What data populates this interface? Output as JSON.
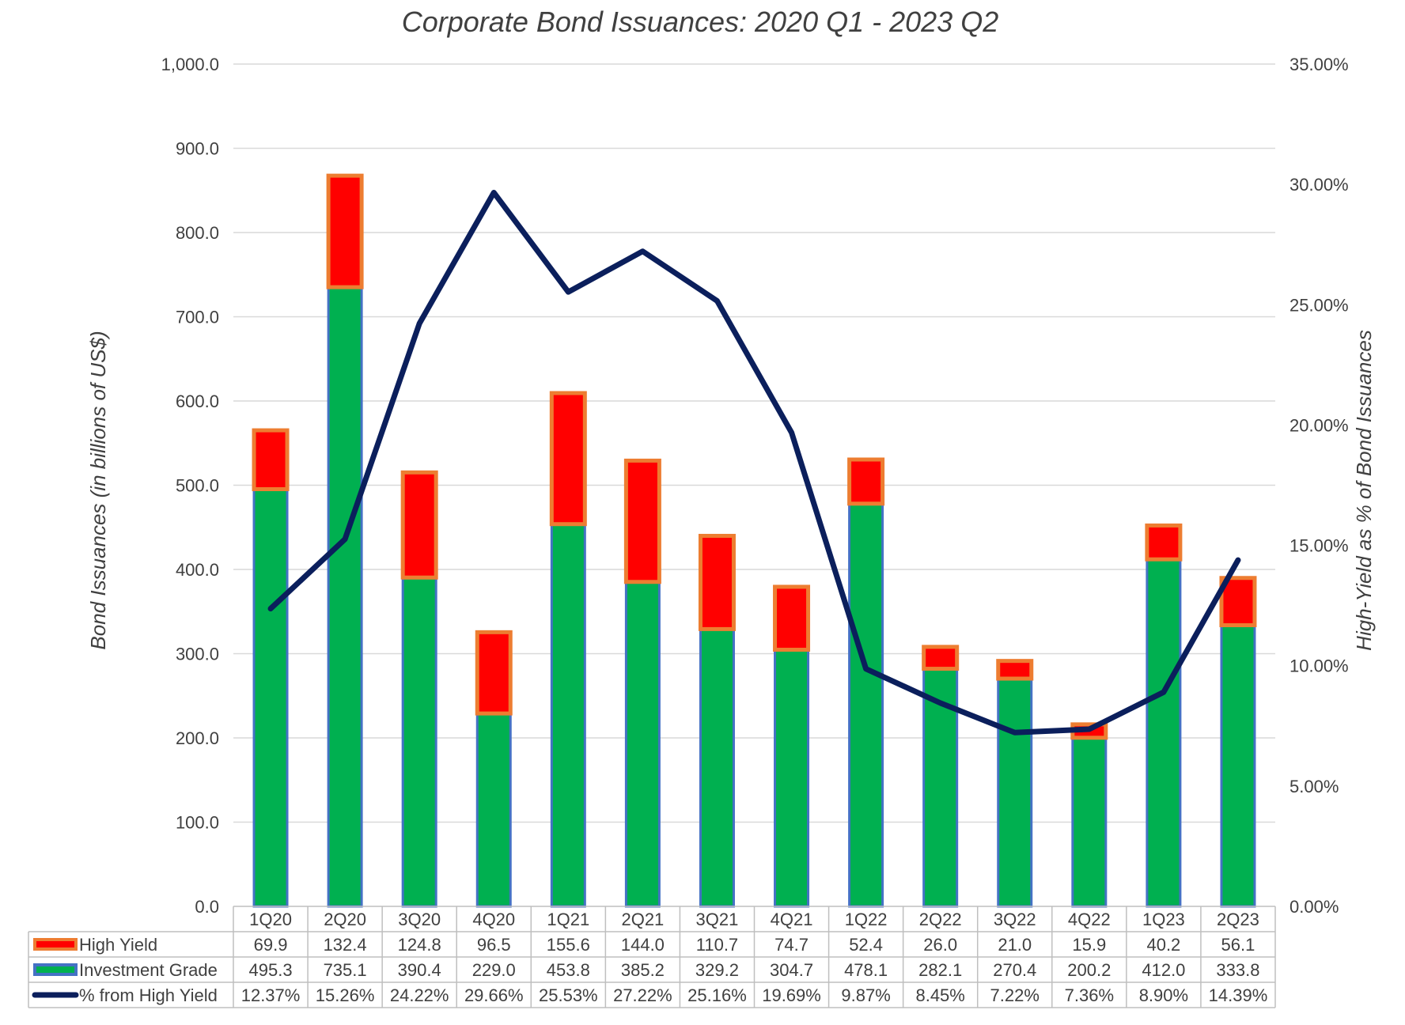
{
  "chart_data": {
    "type": "bar",
    "stacked": true,
    "title": "Corporate Bond Issuances: 2020 Q1 - 2023 Q2",
    "ylabel": "Bond Issuances (in billions of US$)",
    "y2label": "High-Yield as % of Bond Issuances",
    "ylim": [
      0,
      1000
    ],
    "y2lim": [
      0,
      35
    ],
    "yticks": [
      "0.0",
      "100.0",
      "200.0",
      "300.0",
      "400.0",
      "500.0",
      "600.0",
      "700.0",
      "800.0",
      "900.0",
      "1,000.0"
    ],
    "y2ticks": [
      "0.00%",
      "5.00%",
      "10.00%",
      "15.00%",
      "20.00%",
      "25.00%",
      "30.00%",
      "35.00%"
    ],
    "grid": true,
    "legend_placement": "data-table-bottom",
    "categories": [
      "1Q20",
      "2Q20",
      "3Q20",
      "4Q20",
      "1Q21",
      "2Q21",
      "3Q21",
      "4Q21",
      "1Q22",
      "2Q22",
      "3Q22",
      "4Q22",
      "1Q23",
      "2Q23"
    ],
    "series": [
      {
        "name": "High Yield",
        "type": "bar",
        "color": "#ff0000",
        "border": "#ed7d31",
        "values": [
          69.9,
          132.4,
          124.8,
          96.5,
          155.6,
          144.0,
          110.7,
          74.7,
          52.4,
          26.0,
          21.0,
          15.9,
          40.2,
          56.1
        ],
        "labels": [
          "69.9",
          "132.4",
          "124.8",
          "96.5",
          "155.6",
          "144.0",
          "110.7",
          "74.7",
          "52.4",
          "26.0",
          "21.0",
          "15.9",
          "40.2",
          "56.1"
        ]
      },
      {
        "name": "Investment Grade",
        "type": "bar",
        "color": "#00b050",
        "border": "#4472c4",
        "values": [
          495.3,
          735.1,
          390.4,
          229.0,
          453.8,
          385.2,
          329.2,
          304.7,
          478.1,
          282.1,
          270.4,
          200.2,
          412.0,
          333.8
        ],
        "labels": [
          "495.3",
          "735.1",
          "390.4",
          "229.0",
          "453.8",
          "385.2",
          "329.2",
          "304.7",
          "478.1",
          "282.1",
          "270.4",
          "200.2",
          "412.0",
          "333.8"
        ]
      },
      {
        "name": "% from High Yield",
        "type": "line",
        "axis": "secondary",
        "color": "#0b1f5c",
        "values": [
          12.37,
          15.26,
          24.22,
          29.66,
          25.53,
          27.22,
          25.16,
          19.69,
          9.87,
          8.45,
          7.22,
          7.36,
          8.9,
          14.39
        ],
        "labels": [
          "12.37%",
          "15.26%",
          "24.22%",
          "29.66%",
          "25.53%",
          "27.22%",
          "25.16%",
          "19.69%",
          "9.87%",
          "8.45%",
          "7.22%",
          "7.36%",
          "8.90%",
          "14.39%"
        ]
      }
    ]
  }
}
